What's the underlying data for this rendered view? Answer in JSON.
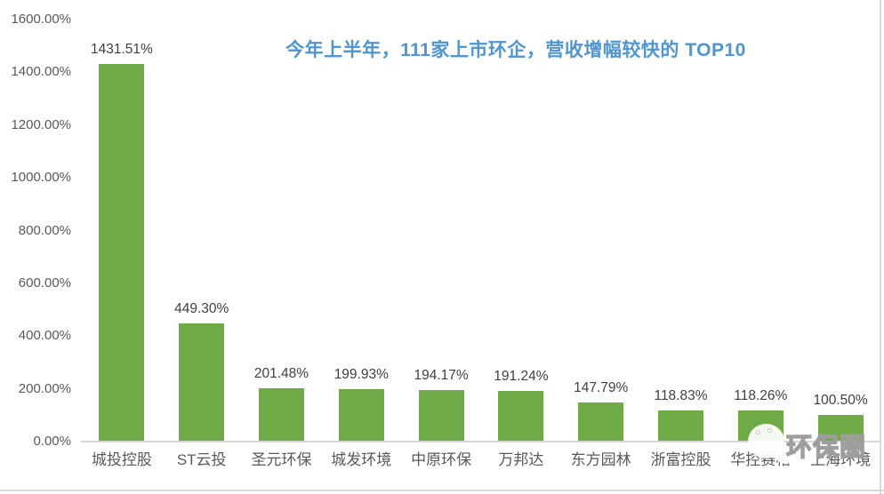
{
  "colors": {
    "bar": "#6EAB47",
    "title": "#4E95D2",
    "tick_text": "#595959",
    "value_text": "#404040",
    "category_text": "#595959",
    "axis_line": "#D6D6D6",
    "border": "#D9D9D9",
    "watermark_stroke": "#9E9E9E"
  },
  "chart_data": {
    "type": "bar",
    "title": "今年上半年，111家上市环企，营收增幅较快的 TOP10",
    "categories": [
      "城投控股",
      "ST云投",
      "圣元环保",
      "城发环境",
      "中原环保",
      "万邦达",
      "东方园林",
      "浙富控股",
      "华控赛格",
      "上海环境"
    ],
    "values": [
      1431.51,
      449.3,
      201.48,
      199.93,
      194.17,
      191.24,
      147.79,
      118.83,
      118.26,
      100.5
    ],
    "data_labels": [
      "1431.51%",
      "449.30%",
      "201.48%",
      "199.93%",
      "194.17%",
      "191.24%",
      "147.79%",
      "118.83%",
      "118.26%",
      "100.50%"
    ],
    "xlabel": "",
    "ylabel": "",
    "ylim": [
      0,
      1600
    ],
    "y_ticks": [
      {
        "value": 1600,
        "label": "1600.00%"
      },
      {
        "value": 1400,
        "label": "1400.00%"
      },
      {
        "value": 1200,
        "label": "1200.00%"
      },
      {
        "value": 1000,
        "label": "1000.00%"
      },
      {
        "value": 800,
        "label": "800.00%"
      },
      {
        "value": 600,
        "label": "600.00%"
      },
      {
        "value": 400,
        "label": "400.00%"
      },
      {
        "value": 200,
        "label": "200.00%"
      },
      {
        "value": 0,
        "label": "0.00%"
      }
    ],
    "grid": false,
    "legend": false,
    "bar_color": "#6EAB47"
  },
  "watermark": {
    "text": "环保圈",
    "icon": "wechat-logo-icon"
  }
}
